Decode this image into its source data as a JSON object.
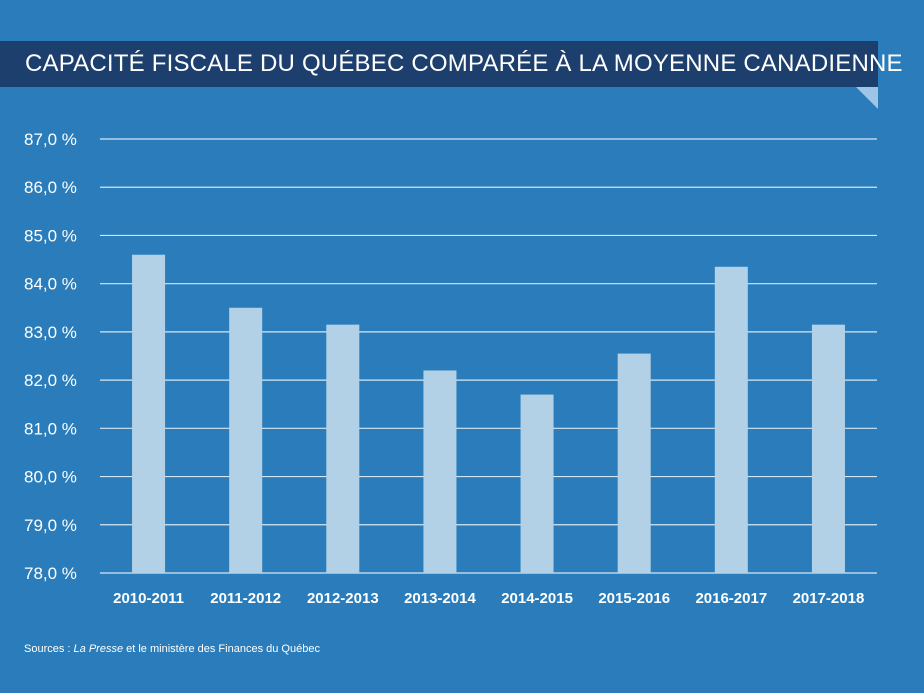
{
  "chart_data": {
    "type": "bar",
    "title": "CAPACITÉ FISCALE DU QUÉBEC COMPARÉE À LA MOYENNE CANADIENNE",
    "categories": [
      "2010-2011",
      "2011-2012",
      "2012-2013",
      "2013-2014",
      "2014-2015",
      "2015-2016",
      "2016-2017",
      "2017-2018"
    ],
    "values": [
      84.6,
      83.5,
      83.15,
      82.2,
      81.7,
      82.55,
      84.35,
      83.15
    ],
    "ylim": [
      78,
      87
    ],
    "y_ticks": [
      78,
      79,
      80,
      81,
      82,
      83,
      84,
      85,
      86,
      87
    ],
    "y_tick_labels": [
      "78,0 %",
      "79,0 %",
      "80,0 %",
      "81,0 %",
      "82,0 %",
      "83,0 %",
      "84,0 %",
      "85,0 %",
      "86,0 %",
      "87,0 %"
    ],
    "grid": true,
    "xlabel": "",
    "ylabel": ""
  },
  "colors": {
    "background": "#2a7dba",
    "banner": "#1d3f6e",
    "bar": "#b3d1e6",
    "grid": "#d6e6f3",
    "text": "#ffffff"
  },
  "source": {
    "prefix": "Sources : ",
    "italic": "La Presse",
    "suffix": " et le ministère des Finances du Québec"
  }
}
